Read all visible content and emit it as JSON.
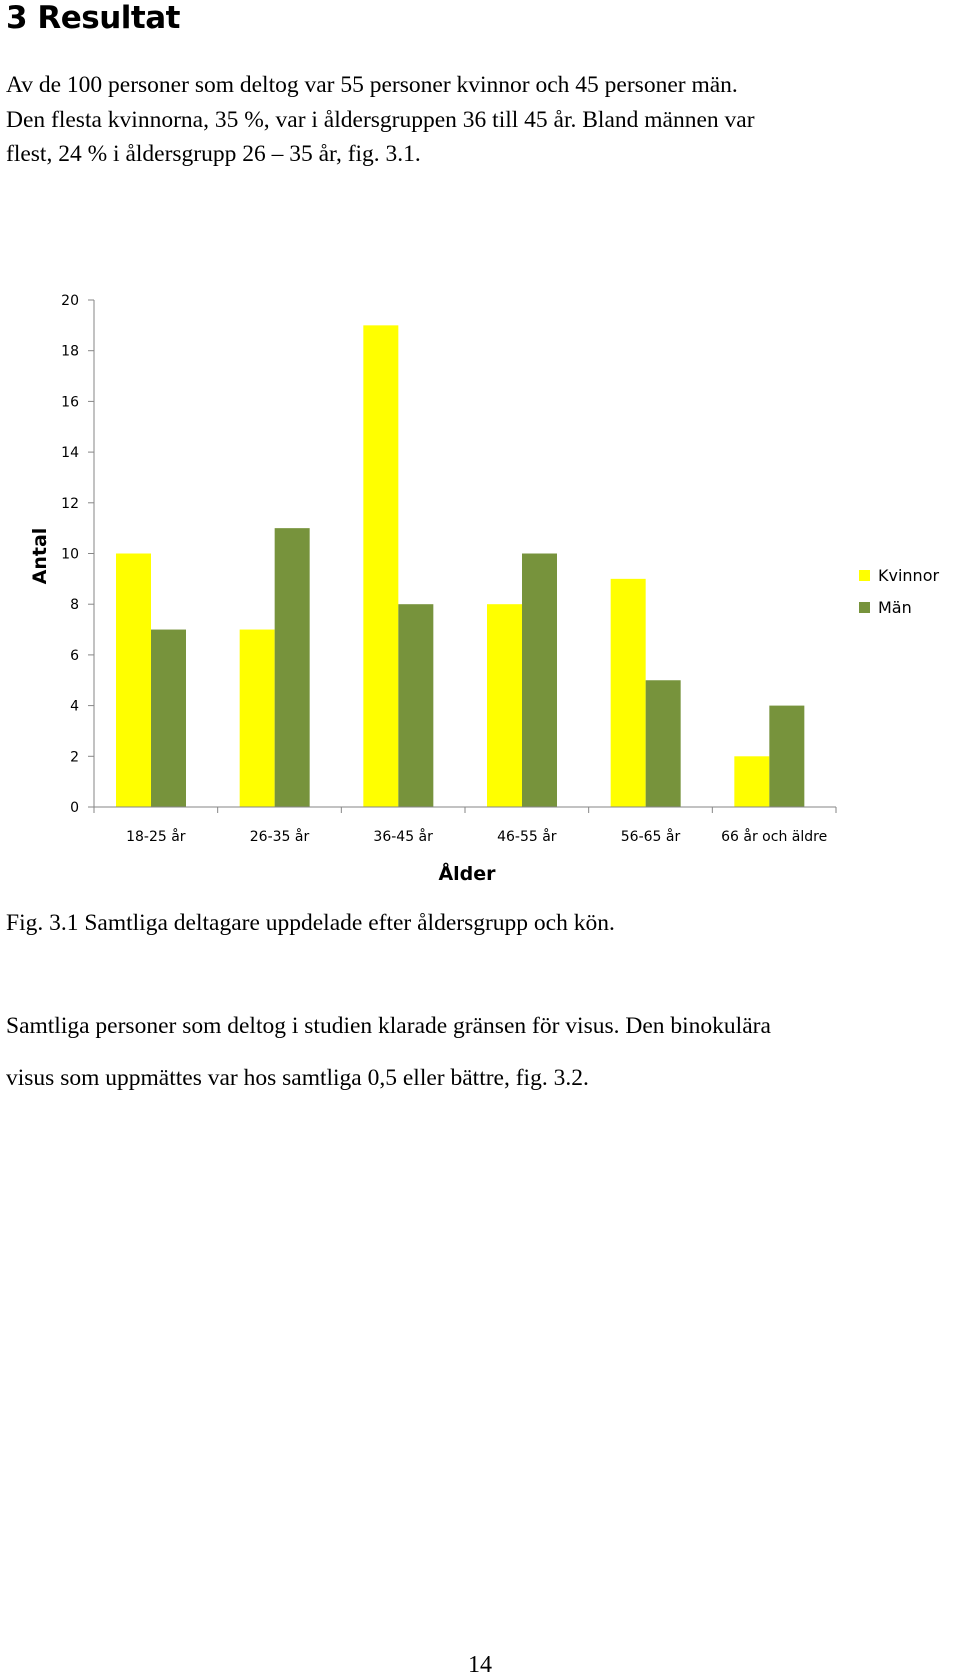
{
  "section": {
    "heading": "3 Resultat"
  },
  "intro": {
    "lines": [
      "Av de 100 personer som deltog var 55 personer kvinnor och 45 personer män.",
      "Den flesta kvinnorna, 35 %, var i åldersgruppen 36 till 45 år. Bland männen var",
      "flest, 24 % i åldersgrupp 26 – 35 år, fig. 3.1."
    ]
  },
  "figure": {
    "caption": "Fig. 3.1 Samtliga deltagare uppdelade efter åldersgrupp och kön."
  },
  "body": {
    "lines": [
      "Samtliga personer som deltog i studien klarade gränsen för visus. Den binokulära",
      "visus som uppmättes var hos samtliga 0,5 eller bättre, fig. 3.2."
    ]
  },
  "footer": {
    "page_number": "14"
  },
  "chart_data": {
    "type": "bar",
    "title": "",
    "xlabel": "Ålder",
    "ylabel": "Antal",
    "categories": [
      "18-25 år",
      "26-35 år",
      "36-45 år",
      "46-55 år",
      "56-65 år",
      "66 år och äldre"
    ],
    "series": [
      {
        "name": "Kvinnor",
        "color": "#ffff00",
        "values": [
          10,
          7,
          19,
          8,
          9,
          2
        ]
      },
      {
        "name": "Män",
        "color": "#77933c",
        "values": [
          7,
          11,
          8,
          10,
          5,
          4
        ]
      }
    ],
    "ylim": [
      0,
      20
    ],
    "yticks": [
      0,
      2,
      4,
      6,
      8,
      10,
      12,
      14,
      16,
      18,
      20
    ],
    "grid": false,
    "legend_position": "right"
  }
}
